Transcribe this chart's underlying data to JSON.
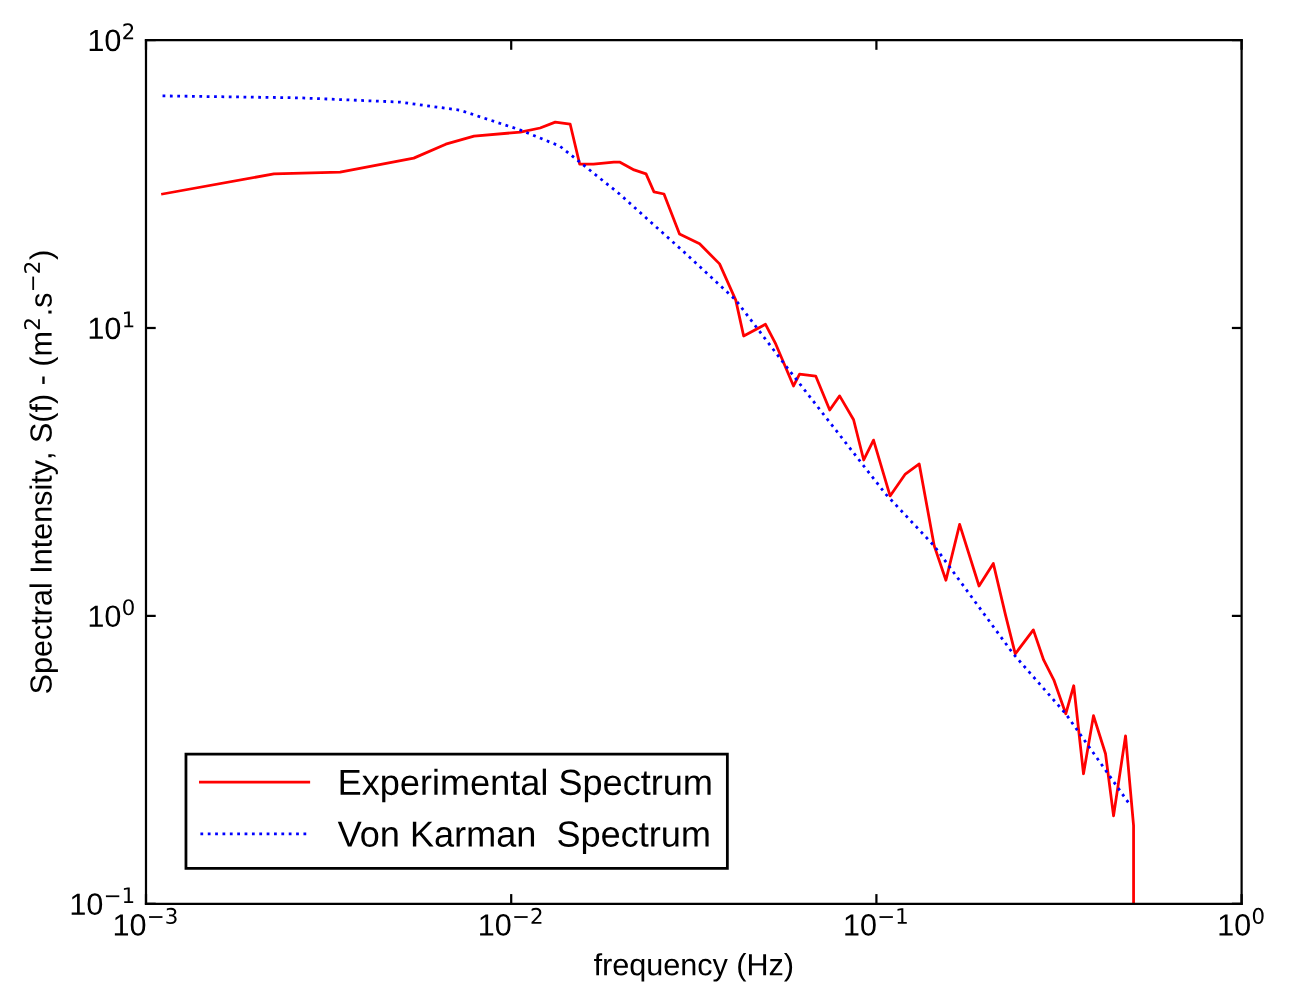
{
  "chart_data": {
    "type": "line",
    "xlabel": "frequency (Hz)",
    "ylabel": "Spectral Intensity, S(f) - (m$^{2}$.s$^{−2}$)",
    "log": "xy",
    "grid": false,
    "legend": "bottom left",
    "marker": "none",
    "xlim": [
      0.001,
      1
    ],
    "ylim": [
      0.1,
      100
    ],
    "xticks": [
      {
        "value": 0.001,
        "label": "10$^{−3}$"
      },
      {
        "value": 0.01,
        "label": "10$^{−2}$"
      },
      {
        "value": 0.1,
        "label": "10$^{−1}$"
      },
      {
        "value": 1,
        "label": "10$^{0}$"
      }
    ],
    "yticks": [
      {
        "value": 0.1,
        "label": "10$^{−1}$"
      },
      {
        "value": 1,
        "label": "10$^{0}$"
      },
      {
        "value": 10,
        "label": "10$^{1}$"
      },
      {
        "value": 100,
        "label": "10$^{2}$"
      }
    ],
    "series": [
      {
        "name": "Experimental Spectrum",
        "color": "#ff0000",
        "line_style": "solid",
        "x": [
          0.00111,
          0.00224,
          0.0034,
          0.00541,
          0.00662,
          0.00791,
          0.0106,
          0.012,
          0.0132,
          0.0145,
          0.0154,
          0.0168,
          0.0191,
          0.0198,
          0.0217,
          0.0234,
          0.0246,
          0.0262,
          0.0289,
          0.0328,
          0.0372,
          0.0412,
          0.0433,
          0.0497,
          0.053,
          0.0593,
          0.0616,
          0.0682,
          0.0745,
          0.0793,
          0.0866,
          0.0923,
          0.0982,
          0.109,
          0.12,
          0.131,
          0.144,
          0.155,
          0.169,
          0.191,
          0.209,
          0.226,
          0.24,
          0.269,
          0.287,
          0.306,
          0.33,
          0.347,
          0.369,
          0.393,
          0.424,
          0.446,
          0.481,
          0.506,
          0.506
        ],
        "values": [
          29.2,
          34.3,
          34.8,
          38.9,
          43.5,
          46.4,
          47.9,
          49.5,
          51.9,
          51.1,
          37.1,
          37.1,
          37.7,
          37.7,
          35.4,
          34.3,
          29.7,
          29.2,
          21.2,
          19.6,
          16.7,
          12.5,
          9.38,
          10.3,
          8.8,
          6.29,
          6.92,
          6.81,
          5.19,
          5.81,
          4.8,
          3.48,
          4.08,
          2.61,
          3.11,
          3.37,
          1.75,
          1.33,
          2.08,
          1.27,
          1.52,
          1.0,
          0.738,
          0.894,
          0.703,
          0.6,
          0.457,
          0.572,
          0.283,
          0.45,
          0.332,
          0.202,
          0.383,
          0.187,
          0.1
        ]
      },
      {
        "name": "Von Karman  Spectrum",
        "color": "#0000ff",
        "line_style": "dotted",
        "x": [
          0.00111,
          0.00264,
          0.00495,
          0.00723,
          0.0106,
          0.0136,
          0.0198,
          0.0301,
          0.0412,
          0.0565,
          0.106,
          0.144,
          0.237,
          0.33,
          0.493
        ],
        "values": [
          64.0,
          63.0,
          60.9,
          57.1,
          48.7,
          42.8,
          29.2,
          18.1,
          12.5,
          7.38,
          2.65,
          1.75,
          0.738,
          0.457,
          0.222
        ]
      }
    ]
  }
}
